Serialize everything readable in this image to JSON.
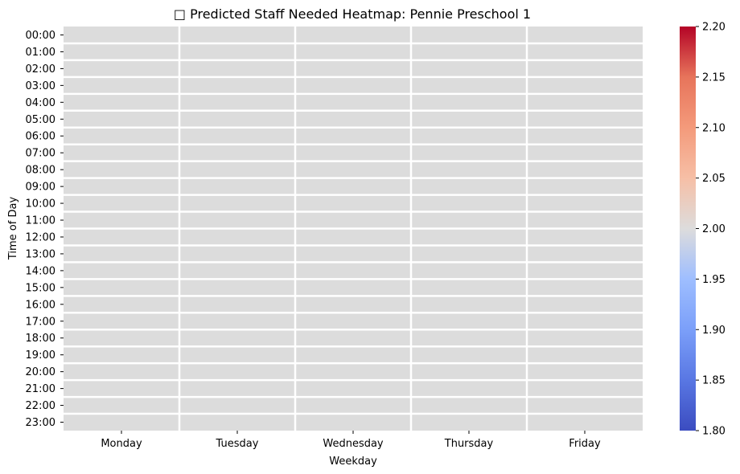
{
  "chart_data": {
    "type": "heatmap",
    "title": "□ Predicted Staff Needed Heatmap: Pennie Preschool 1",
    "xlabel": "Weekday",
    "ylabel": "Time of Day",
    "x_categories": [
      "Monday",
      "Tuesday",
      "Wednesday",
      "Thursday",
      "Friday"
    ],
    "y_categories": [
      "00:00",
      "01:00",
      "02:00",
      "03:00",
      "04:00",
      "05:00",
      "06:00",
      "07:00",
      "08:00",
      "09:00",
      "10:00",
      "11:00",
      "12:00",
      "13:00",
      "14:00",
      "15:00",
      "16:00",
      "17:00",
      "18:00",
      "19:00",
      "20:00",
      "21:00",
      "22:00",
      "23:00"
    ],
    "values": [
      [
        2,
        2,
        2,
        2,
        2
      ],
      [
        2,
        2,
        2,
        2,
        2
      ],
      [
        2,
        2,
        2,
        2,
        2
      ],
      [
        2,
        2,
        2,
        2,
        2
      ],
      [
        2,
        2,
        2,
        2,
        2
      ],
      [
        2,
        2,
        2,
        2,
        2
      ],
      [
        2,
        2,
        2,
        2,
        2
      ],
      [
        2,
        2,
        2,
        2,
        2
      ],
      [
        2,
        2,
        2,
        2,
        2
      ],
      [
        2,
        2,
        2,
        2,
        2
      ],
      [
        2,
        2,
        2,
        2,
        2
      ],
      [
        2,
        2,
        2,
        2,
        2
      ],
      [
        2,
        2,
        2,
        2,
        2
      ],
      [
        2,
        2,
        2,
        2,
        2
      ],
      [
        2,
        2,
        2,
        2,
        2
      ],
      [
        2,
        2,
        2,
        2,
        2
      ],
      [
        2,
        2,
        2,
        2,
        2
      ],
      [
        2,
        2,
        2,
        2,
        2
      ],
      [
        2,
        2,
        2,
        2,
        2
      ],
      [
        2,
        2,
        2,
        2,
        2
      ],
      [
        2,
        2,
        2,
        2,
        2
      ],
      [
        2,
        2,
        2,
        2,
        2
      ],
      [
        2,
        2,
        2,
        2,
        2
      ],
      [
        2,
        2,
        2,
        2,
        2
      ]
    ],
    "colorbar": {
      "min": 1.8,
      "max": 2.2,
      "ticks": [
        "1.80",
        "1.85",
        "1.90",
        "1.95",
        "2.00",
        "2.05",
        "2.10",
        "2.15",
        "2.20"
      ],
      "colormap": "coolwarm"
    },
    "cell_color": "#dcdcdc",
    "gridline_color": "#ffffff"
  }
}
